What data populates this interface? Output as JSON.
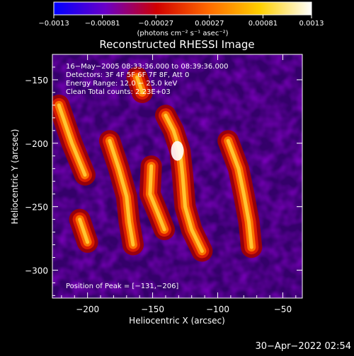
{
  "chart_data": {
    "type": "heatmap",
    "title": "Reconstructed RHESSI Image",
    "xlabel": "Heliocentric X (arcsec)",
    "ylabel": "Heliocentric Y (arcsec)",
    "xlim": [
      -227,
      -35
    ],
    "ylim": [
      -322,
      -130
    ],
    "x_ticks": [
      -200,
      -150,
      -100,
      -50
    ],
    "x_tick_labels": [
      "−200",
      "−150",
      "−100",
      "−50"
    ],
    "y_ticks": [
      -150,
      -200,
      -250,
      -300
    ],
    "y_tick_labels": [
      "−150",
      "−200",
      "−250",
      "−300"
    ],
    "colorbar": {
      "range": [
        -0.0013,
        0.0013
      ],
      "ticks": [
        -0.0013,
        -0.00081,
        -0.00027,
        0.00027,
        0.00081,
        0.0013
      ],
      "tick_labels": [
        "−0.0013",
        "−0.00081",
        "−0.00027",
        "0.00027",
        "0.00081",
        "0.0013"
      ],
      "units": "(photons cm⁻² s⁻¹ asec⁻²)",
      "colors": [
        "#0000ff",
        "#6a00c8",
        "#d00000",
        "#ff6a00",
        "#ffd000",
        "#ffffff"
      ]
    },
    "annotations": [
      "16−May−2005 08:33:36.000 to 08:39:36.000",
      "Detectors: 3F 4F 5F 6F 7F 8F, Att 0",
      "Energy Range: 12.0 − 25.0 keV",
      "Clean    Total counts: 2.23E+03"
    ],
    "peak_label": "Position of Peak = [−131,−206]",
    "peak_position": [
      -131,
      -206
    ],
    "features": [
      {
        "x": [
          -222,
          -212,
          -202
        ],
        "y": [
          -170,
          -200,
          -225
        ]
      },
      {
        "x": [
          -183,
          -176,
          -170,
          -168,
          -165
        ],
        "y": [
          -198,
          -220,
          -242,
          -262,
          -280
        ]
      },
      {
        "x": [
          -151,
          -152,
          -146,
          -141
        ],
        "y": [
          -218,
          -240,
          -255,
          -268
        ]
      },
      {
        "x": [
          -140,
          -134,
          -129,
          -127,
          -125,
          -120,
          -112
        ],
        "y": [
          -178,
          -190,
          -206,
          -225,
          -250,
          -268,
          -285
        ]
      },
      {
        "x": [
          -92,
          -84,
          -80,
          -76,
          -74
        ],
        "y": [
          -198,
          -220,
          -240,
          -262,
          -282
        ]
      },
      {
        "x": [
          -206,
          -200
        ],
        "y": [
          -260,
          -278
        ]
      },
      {
        "x": [
          -162,
          -158
        ],
        "y": [
          -148,
          -160
        ]
      }
    ]
  },
  "footer": {
    "timestamp": "30−Apr−2022 02:54"
  }
}
